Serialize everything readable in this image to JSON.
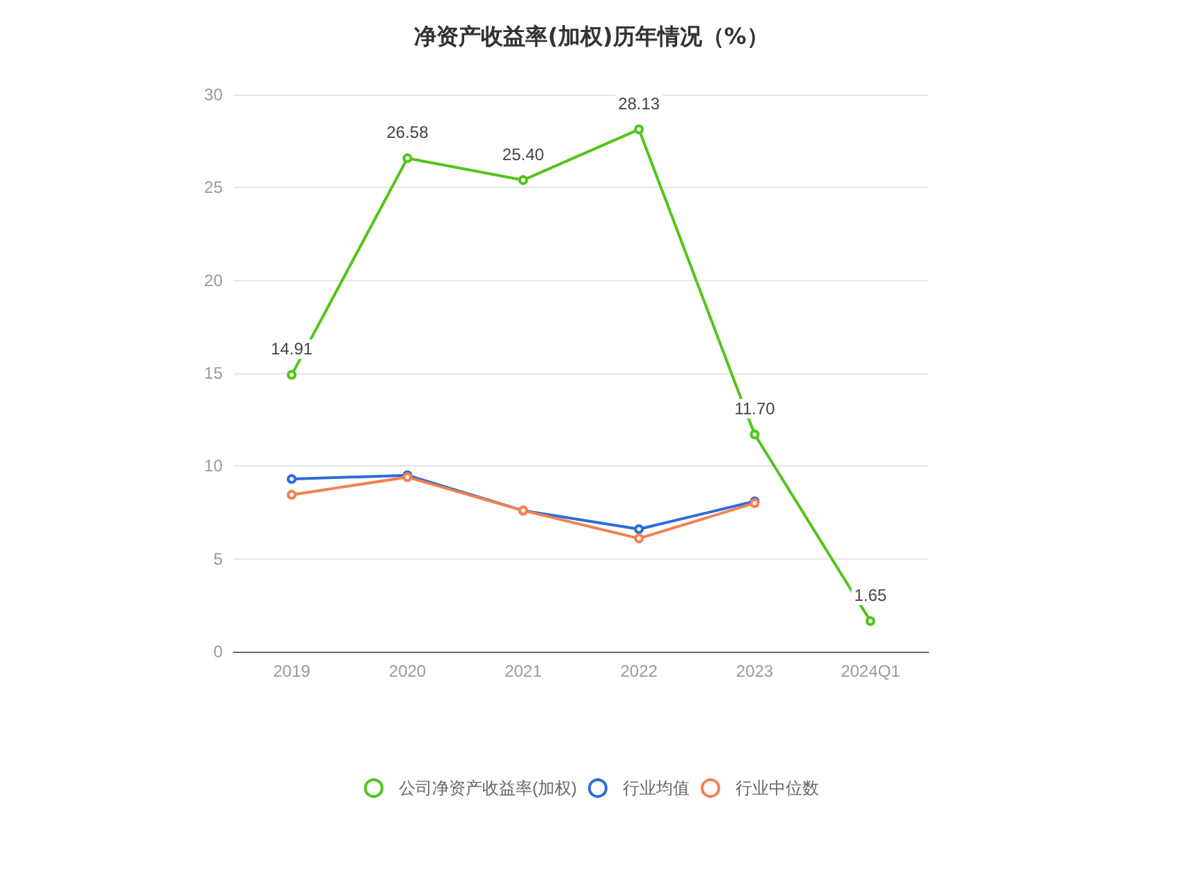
{
  "chart_data": {
    "type": "line",
    "title": "净资产收益率(加权)历年情况（%）",
    "categories": [
      "2019",
      "2020",
      "2021",
      "2022",
      "2023",
      "2024Q1"
    ],
    "series": [
      {
        "name": "公司净资产收益率(加权)",
        "color": "#52c41a",
        "values": [
          14.91,
          26.58,
          25.4,
          28.13,
          11.7,
          1.65
        ],
        "value_labels": [
          "14.91",
          "26.58",
          "25.40",
          "28.13",
          "11.70",
          "1.65"
        ]
      },
      {
        "name": "行业均值",
        "color": "#2f6bdb",
        "values": [
          9.3,
          9.5,
          7.6,
          6.6,
          8.1,
          null
        ]
      },
      {
        "name": "行业中位数",
        "color": "#f5804f",
        "values": [
          8.45,
          9.4,
          7.6,
          6.1,
          8.0,
          null
        ]
      }
    ],
    "ylim": [
      0,
      30
    ],
    "yticks": [
      0,
      5,
      10,
      15,
      20,
      25,
      30
    ],
    "grid": "y",
    "legend": "bottom",
    "marker": "circle",
    "line_style": "solid"
  }
}
